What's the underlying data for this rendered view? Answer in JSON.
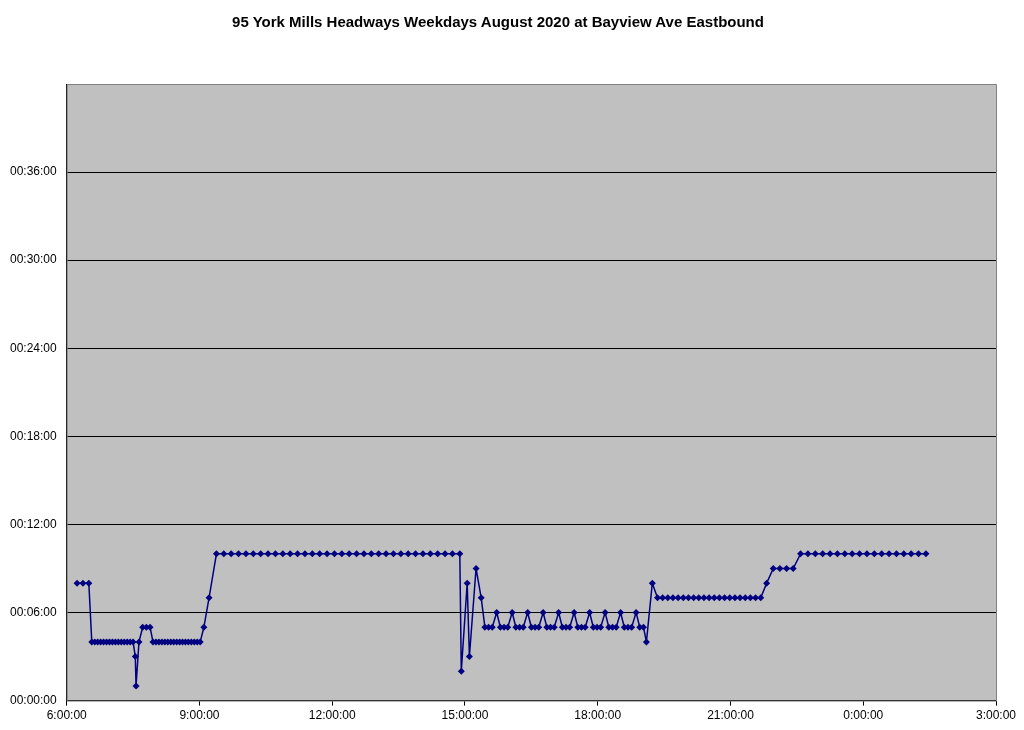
{
  "chart_data": {
    "type": "line",
    "title": "95 York Mills Headways Weekdays August 2020 at Bayview Ave Eastbound",
    "x": [
      "2020-08-03T06:14",
      "2020-08-03T06:22",
      "2020-08-03T06:30",
      "2020-08-03T06:34",
      "2020-08-03T06:38",
      "2020-08-03T06:42",
      "2020-08-03T06:46",
      "2020-08-03T06:50",
      "2020-08-03T06:54",
      "2020-08-03T06:58",
      "2020-08-03T07:02",
      "2020-08-03T07:06",
      "2020-08-03T07:10",
      "2020-08-03T07:14",
      "2020-08-03T07:18",
      "2020-08-03T07:22",
      "2020-08-03T07:26",
      "2020-08-03T07:30",
      "2020-08-03T07:33",
      "2020-08-03T07:34",
      "2020-08-03T07:38",
      "2020-08-03T07:43",
      "2020-08-03T07:48",
      "2020-08-03T07:53",
      "2020-08-03T07:57",
      "2020-08-03T08:01",
      "2020-08-03T08:05",
      "2020-08-03T08:09",
      "2020-08-03T08:13",
      "2020-08-03T08:17",
      "2020-08-03T08:21",
      "2020-08-03T08:25",
      "2020-08-03T08:29",
      "2020-08-03T08:33",
      "2020-08-03T08:37",
      "2020-08-03T08:41",
      "2020-08-03T08:45",
      "2020-08-03T08:49",
      "2020-08-03T08:53",
      "2020-08-03T08:57",
      "2020-08-03T09:01",
      "2020-08-03T09:06",
      "2020-08-03T09:13",
      "2020-08-03T09:23",
      "2020-08-03T09:33",
      "2020-08-03T09:43",
      "2020-08-03T09:53",
      "2020-08-03T10:03",
      "2020-08-03T10:13",
      "2020-08-03T10:23",
      "2020-08-03T10:33",
      "2020-08-03T10:43",
      "2020-08-03T10:53",
      "2020-08-03T11:03",
      "2020-08-03T11:13",
      "2020-08-03T11:23",
      "2020-08-03T11:33",
      "2020-08-03T11:43",
      "2020-08-03T11:53",
      "2020-08-03T12:03",
      "2020-08-03T12:13",
      "2020-08-03T12:23",
      "2020-08-03T12:33",
      "2020-08-03T12:43",
      "2020-08-03T12:53",
      "2020-08-03T13:03",
      "2020-08-03T13:13",
      "2020-08-03T13:23",
      "2020-08-03T13:33",
      "2020-08-03T13:43",
      "2020-08-03T13:53",
      "2020-08-03T14:03",
      "2020-08-03T14:13",
      "2020-08-03T14:23",
      "2020-08-03T14:33",
      "2020-08-03T14:43",
      "2020-08-03T14:53",
      "2020-08-03T14:55",
      "2020-08-03T15:03",
      "2020-08-03T15:06",
      "2020-08-03T15:15",
      "2020-08-03T15:22",
      "2020-08-03T15:27",
      "2020-08-03T15:32",
      "2020-08-03T15:37",
      "2020-08-03T15:43",
      "2020-08-03T15:48",
      "2020-08-03T15:53",
      "2020-08-03T15:58",
      "2020-08-03T16:04",
      "2020-08-03T16:09",
      "2020-08-03T16:14",
      "2020-08-03T16:19",
      "2020-08-03T16:25",
      "2020-08-03T16:30",
      "2020-08-03T16:35",
      "2020-08-03T16:40",
      "2020-08-03T16:46",
      "2020-08-03T16:51",
      "2020-08-03T16:56",
      "2020-08-03T17:01",
      "2020-08-03T17:07",
      "2020-08-03T17:12",
      "2020-08-03T17:17",
      "2020-08-03T17:22",
      "2020-08-03T17:28",
      "2020-08-03T17:33",
      "2020-08-03T17:38",
      "2020-08-03T17:43",
      "2020-08-03T17:49",
      "2020-08-03T17:54",
      "2020-08-03T17:59",
      "2020-08-03T18:04",
      "2020-08-03T18:10",
      "2020-08-03T18:15",
      "2020-08-03T18:20",
      "2020-08-03T18:25",
      "2020-08-03T18:31",
      "2020-08-03T18:36",
      "2020-08-03T18:41",
      "2020-08-03T18:46",
      "2020-08-03T18:52",
      "2020-08-03T18:57",
      "2020-08-03T19:02",
      "2020-08-03T19:06",
      "2020-08-03T19:14",
      "2020-08-03T19:21",
      "2020-08-03T19:28",
      "2020-08-03T19:35",
      "2020-08-03T19:42",
      "2020-08-03T19:49",
      "2020-08-03T19:56",
      "2020-08-03T20:03",
      "2020-08-03T20:10",
      "2020-08-03T20:17",
      "2020-08-03T20:24",
      "2020-08-03T20:31",
      "2020-08-03T20:38",
      "2020-08-03T20:45",
      "2020-08-03T20:52",
      "2020-08-03T20:59",
      "2020-08-03T21:06",
      "2020-08-03T21:13",
      "2020-08-03T21:20",
      "2020-08-03T21:27",
      "2020-08-03T21:34",
      "2020-08-03T21:41",
      "2020-08-03T21:49",
      "2020-08-03T21:58",
      "2020-08-03T22:07",
      "2020-08-03T22:16",
      "2020-08-03T22:25",
      "2020-08-03T22:35",
      "2020-08-03T22:45",
      "2020-08-03T22:55",
      "2020-08-03T23:05",
      "2020-08-03T23:15",
      "2020-08-03T23:25",
      "2020-08-03T23:35",
      "2020-08-03T23:45",
      "2020-08-03T23:55",
      "2020-08-04T00:05",
      "2020-08-04T00:15",
      "2020-08-04T00:25",
      "2020-08-04T00:35",
      "2020-08-04T00:45",
      "2020-08-04T00:55",
      "2020-08-04T01:05",
      "2020-08-04T01:15",
      "2020-08-04T01:25"
    ],
    "series": [
      {
        "color": "#000080",
        "values": [
          8,
          8,
          8,
          4,
          4,
          4,
          4,
          4,
          4,
          4,
          4,
          4,
          4,
          4,
          4,
          4,
          4,
          4,
          3,
          1,
          4,
          5,
          5,
          5,
          4,
          4,
          4,
          4,
          4,
          4,
          4,
          4,
          4,
          4,
          4,
          4,
          4,
          4,
          4,
          4,
          4,
          5,
          7,
          10,
          10,
          10,
          10,
          10,
          10,
          10,
          10,
          10,
          10,
          10,
          10,
          10,
          10,
          10,
          10,
          10,
          10,
          10,
          10,
          10,
          10,
          10,
          10,
          10,
          10,
          10,
          10,
          10,
          10,
          10,
          10,
          10,
          10,
          2,
          8,
          3,
          9,
          7,
          5,
          5,
          5,
          6,
          5,
          5,
          5,
          6,
          5,
          5,
          5,
          6,
          5,
          5,
          5,
          6,
          5,
          5,
          5,
          6,
          5,
          5,
          5,
          6,
          5,
          5,
          5,
          6,
          5,
          5,
          5,
          6,
          5,
          5,
          5,
          6,
          5,
          5,
          5,
          6,
          5,
          5,
          4,
          8,
          7,
          7,
          7,
          7,
          7,
          7,
          7,
          7,
          7,
          7,
          7,
          7,
          7,
          7,
          7,
          7,
          7,
          7,
          7,
          7,
          7,
          8,
          9,
          9,
          9,
          9,
          10,
          10,
          10,
          10,
          10,
          10,
          10,
          10,
          10,
          10,
          10,
          10,
          10,
          10,
          10,
          10,
          10,
          10
        ]
      }
    ],
    "xlim": [
      "2020-08-03T06:00",
      "2020-08-04T03:00"
    ],
    "xticks": [
      {
        "value": "2020-08-03T06:00",
        "label": "6:00:00"
      },
      {
        "value": "2020-08-03T09:00",
        "label": "9:00:00"
      },
      {
        "value": "2020-08-03T12:00",
        "label": "12:00:00"
      },
      {
        "value": "2020-08-03T15:00",
        "label": "15:00:00"
      },
      {
        "value": "2020-08-03T18:00",
        "label": "18:00:00"
      },
      {
        "value": "2020-08-03T21:00",
        "label": "21:00:00"
      },
      {
        "value": "2020-08-04T00:00",
        "label": "0:00:00"
      },
      {
        "value": "2020-08-04T03:00",
        "label": "3:00:00"
      }
    ],
    "ylim": [
      0,
      42
    ],
    "yticks": [
      {
        "value": 0,
        "label": "00:00:00"
      },
      {
        "value": 6,
        "label": "00:06:00"
      },
      {
        "value": 12,
        "label": "00:12:00"
      },
      {
        "value": 18,
        "label": "00:18:00"
      },
      {
        "value": 24,
        "label": "00:24:00"
      },
      {
        "value": 30,
        "label": "00:30:00"
      },
      {
        "value": 36,
        "label": "00:36:00"
      }
    ],
    "grid": "y",
    "marker": "diamond",
    "line_style": "solid"
  }
}
